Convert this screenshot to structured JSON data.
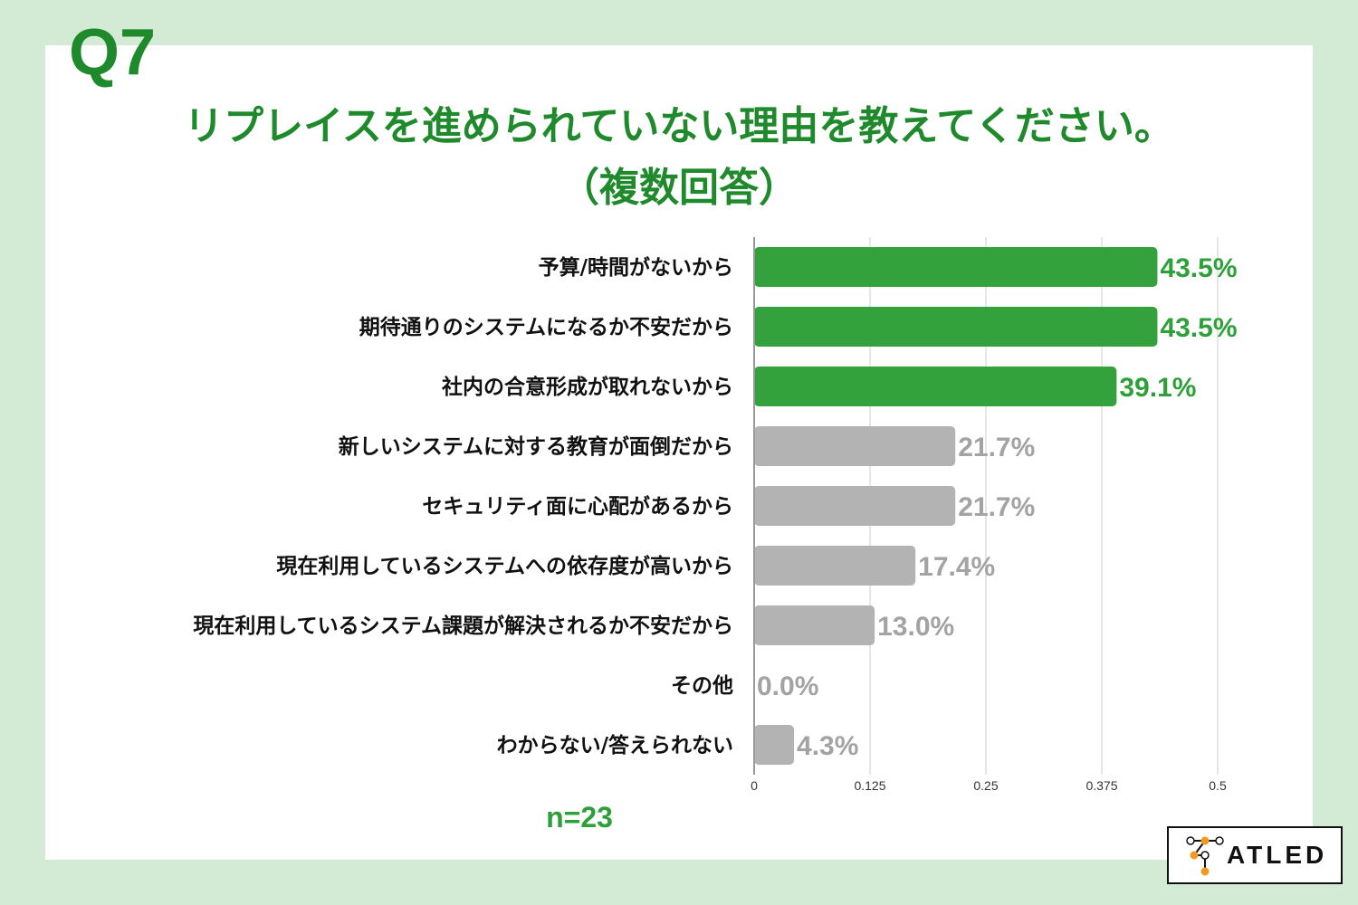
{
  "question_number": "Q7",
  "title_line1": "リプレイスを進められていない理由を教えてください。",
  "title_line2": "（複数回答）",
  "sample_size": "n=23",
  "logo_text": "ATLED",
  "colors": {
    "background": "#d3ead5",
    "highlight_bar": "#33a23c",
    "highlight_label": "#2ea039",
    "other_bar": "#b3b3b3",
    "other_label": "#a3a3a3",
    "title": "#1f8a2c",
    "logo_accent": "#f39a1e"
  },
  "chart_data": {
    "type": "bar",
    "orientation": "horizontal",
    "categories": [
      "予算/時間がないから",
      "期待通りのシステムになるか不安だから",
      "社内の合意形成が取れないから",
      "新しいシステムに対する教育が面倒だから",
      "セキュリティ面に心配があるから",
      "現在利用しているシステムへの依存度が高いから",
      "現在利用しているシステム課題が解決されるか不安だから",
      "その他",
      "わからない/答えられない"
    ],
    "values": [
      0.435,
      0.435,
      0.391,
      0.217,
      0.217,
      0.174,
      0.13,
      0.0,
      0.043
    ],
    "value_labels": [
      "43.5%",
      "43.5%",
      "39.1%",
      "21.7%",
      "21.7%",
      "17.4%",
      "13.0%",
      "0.0%",
      "4.3%"
    ],
    "highlighted": [
      true,
      true,
      true,
      false,
      false,
      false,
      false,
      false,
      false
    ],
    "xlim": [
      0,
      0.5
    ],
    "x_ticks": [
      0,
      0.125,
      0.25,
      0.375,
      0.5
    ],
    "x_tick_labels": [
      "0",
      "0.125",
      "0.25",
      "0.375",
      "0.5"
    ],
    "grid": true
  }
}
